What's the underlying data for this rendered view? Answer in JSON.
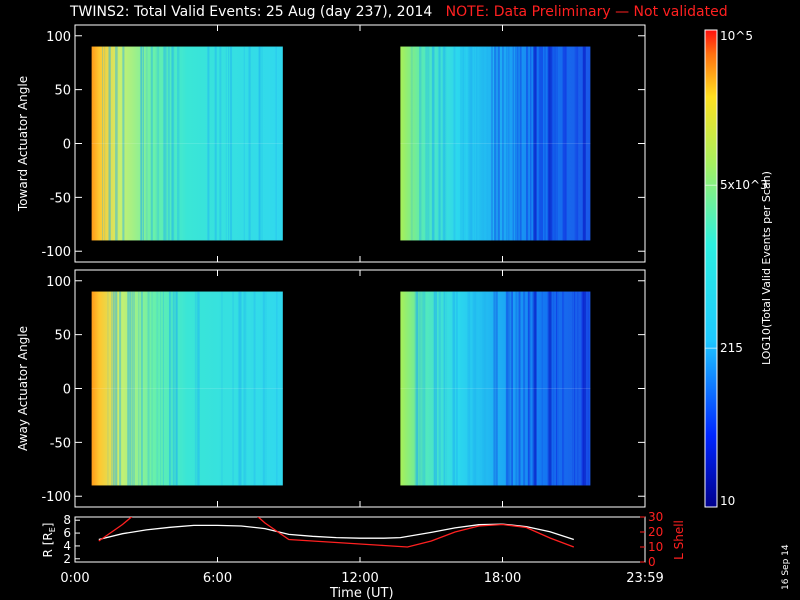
{
  "header": {
    "title": "TWINS2: Total Valid Events: 25 Aug (day 237), 2014",
    "note": "NOTE: Data Preliminary — Not validated"
  },
  "footer": {
    "date_stamp": "16 Sep 14"
  },
  "colors": {
    "spectrogram_scale": "jet",
    "r_line": "#ffffff",
    "lshell_line": "#ff2020",
    "note": "#ff2020"
  },
  "chart_data": [
    {
      "type": "heatmap",
      "ylabel": "Toward Actuator Angle",
      "ylim": [
        -110,
        110
      ],
      "yticks": [
        "100",
        "50",
        "0",
        "-50",
        "-100"
      ],
      "ytick_values": [
        100,
        50,
        0,
        -50,
        -100
      ],
      "xlim": [
        0,
        24
      ],
      "data_ranges_hours": [
        [
          0.7,
          8.75
        ],
        [
          13.7,
          21.7
        ]
      ],
      "angle_range": [
        -90,
        90
      ],
      "trend": "Counts highest (near 1e5) at start of each data block, decreasing to ~100-500 later",
      "colorbar": {
        "label": "LOG10(Total Valid Events per Scan)",
        "scale": "log",
        "range": [
          10,
          100000
        ],
        "tick_labels": [
          "10^5",
          "5x10^3",
          "215",
          "10"
        ],
        "tick_values": [
          100000,
          5000,
          215,
          10
        ]
      }
    },
    {
      "type": "heatmap",
      "ylabel": "Away Actuator Angle",
      "ylim": [
        -110,
        110
      ],
      "yticks": [
        "100",
        "50",
        "0",
        "-50",
        "-100"
      ],
      "ytick_values": [
        100,
        50,
        0,
        -50,
        -100
      ],
      "xlim": [
        0,
        24
      ],
      "data_ranges_hours": [
        [
          0.7,
          8.75
        ],
        [
          13.7,
          21.7
        ]
      ],
      "angle_range": [
        -90,
        90
      ]
    },
    {
      "type": "line",
      "xlabel": "Time (UT)",
      "xticks": [
        "0:00",
        "6:00",
        "12:00",
        "18:00",
        "23:59"
      ],
      "xtick_values": [
        0,
        6,
        12,
        18,
        24
      ],
      "ylabel_left": "R [R",
      "ylabel_left_sub": "E",
      "ylabel_left_end": "]",
      "ylim_left": [
        1.5,
        8.5
      ],
      "yticks_left": [
        "8",
        "6",
        "4",
        "2"
      ],
      "ytick_values_left": [
        8,
        6,
        4,
        2
      ],
      "ylabel_right": "L Shell",
      "ylim_right": [
        0,
        30
      ],
      "yticks_right": [
        "30",
        "20",
        "10",
        "0"
      ],
      "ytick_values_right": [
        30,
        20,
        10,
        0
      ],
      "series": [
        {
          "color": "#ffffff",
          "axis": "left",
          "x": [
            1.0,
            2.0,
            3.0,
            4.0,
            5.0,
            6.0,
            7.0,
            8.0,
            9.0,
            10.0,
            11.0,
            12.0,
            13.0,
            13.7,
            15.0,
            16.0,
            17.0,
            18.0,
            19.0,
            20.0,
            21.0
          ],
          "y": [
            5.0,
            5.9,
            6.5,
            6.9,
            7.2,
            7.2,
            7.1,
            6.7,
            5.8,
            5.5,
            5.3,
            5.2,
            5.2,
            5.3,
            6.1,
            6.8,
            7.3,
            7.4,
            7.0,
            6.2,
            5.0
          ]
        },
        {
          "color": "#ff2020",
          "axis": "right",
          "segments": [
            {
              "x": [
                1.0,
                2.0,
                2.6
              ],
              "y": [
                14,
                25,
                33
              ]
            },
            {
              "x": [
                7.5,
                8.0,
                9.0,
                10.0,
                11.0,
                12.0,
                13.0,
                14.0,
                15.0,
                16.0,
                17.0,
                18.0,
                19.0,
                20.0,
                21.0
              ],
              "y": [
                33,
                26,
                15,
                14,
                13,
                12,
                11,
                10,
                14,
                20,
                24,
                25,
                23,
                16,
                10
              ]
            }
          ]
        }
      ]
    }
  ]
}
